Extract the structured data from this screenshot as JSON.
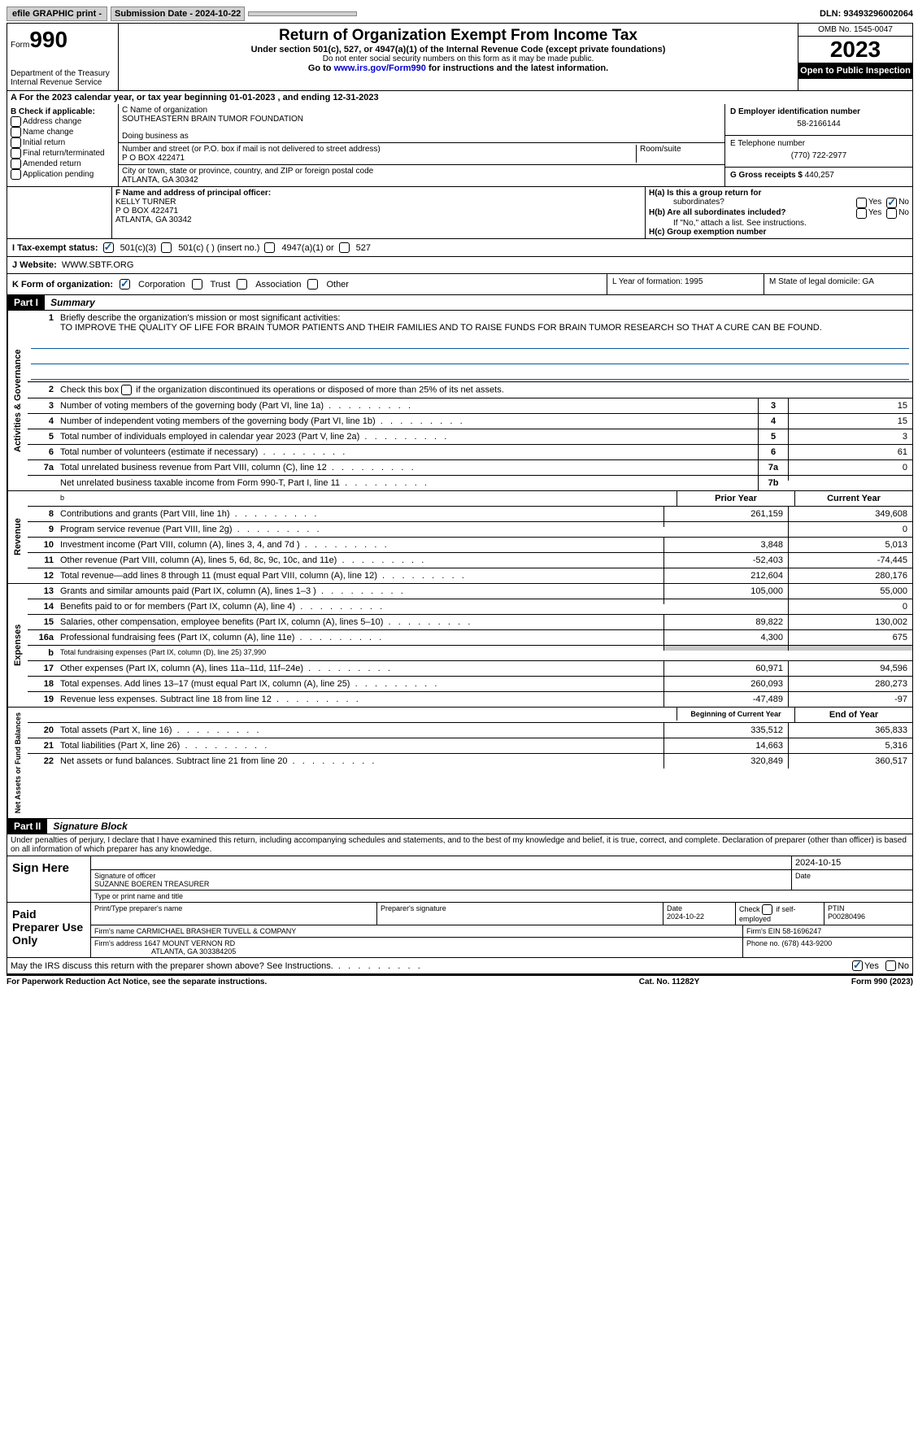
{
  "topbar": {
    "efile_label": "efile GRAPHIC print - ",
    "submission_label": "Submission Date - 2024-10-22",
    "dln_label": "DLN: 93493296002064"
  },
  "header": {
    "form_word": "Form",
    "form_num": "990",
    "dept": "Department of the Treasury",
    "irs": "Internal Revenue Service",
    "title": "Return of Organization Exempt From Income Tax",
    "subtitle": "Under section 501(c), 527, or 4947(a)(1) of the Internal Revenue Code (except private foundations)",
    "ssn_note": "Do not enter social security numbers on this form as it may be made public.",
    "goto_pre": "Go to ",
    "goto_link": "www.irs.gov/Form990",
    "goto_post": " for instructions and the latest information.",
    "omb": "OMB No. 1545-0047",
    "year": "2023",
    "inspect": "Open to Public Inspection"
  },
  "periodA": "A For the 2023 calendar year, or tax year beginning 01-01-2023    , and ending 12-31-2023",
  "boxB": {
    "label": "B Check if applicable:",
    "items": [
      "Address change",
      "Name change",
      "Initial return",
      "Final return/terminated",
      "Amended return",
      "Application pending"
    ]
  },
  "boxC": {
    "name_label": "C Name of organization",
    "name": "SOUTHEASTERN BRAIN TUMOR FOUNDATION",
    "dba_label": "Doing business as",
    "street_label": "Number and street (or P.O. box if mail is not delivered to street address)",
    "room_label": "Room/suite",
    "street": "P O BOX 422471",
    "city_label": "City or town, state or province, country, and ZIP or foreign postal code",
    "city": "ATLANTA, GA  30342"
  },
  "boxD": {
    "ein_label": "D Employer identification number",
    "ein": "58-2166144",
    "phone_label": "E Telephone number",
    "phone": "(770) 722-2977",
    "gross_label": "G Gross receipts $ ",
    "gross": "440,257"
  },
  "boxF": {
    "label": "F Name and address of principal officer:",
    "name": "KELLY TURNER",
    "addr1": "P O BOX 422471",
    "addr2": "ATLANTA, GA  30342"
  },
  "boxH": {
    "ha": "H(a)  Is this a group return for",
    "ha2": "subordinates?",
    "hb": "H(b)  Are all subordinates included?",
    "hb_note": "If \"No,\" attach a list. See instructions.",
    "hc": "H(c)  Group exemption number  ",
    "yes": "Yes",
    "no": "No"
  },
  "taxexempt": {
    "label": "I    Tax-exempt status:",
    "c3": "501(c)(3)",
    "c": "501(c) (  ) (insert no.)",
    "a1": "4947(a)(1) or",
    "s527": "527"
  },
  "website": {
    "label": "J   Website: ",
    "url": "WWW.SBTF.ORG"
  },
  "orgform": {
    "label": "K Form of organization:",
    "corp": "Corporation",
    "trust": "Trust",
    "assoc": "Association",
    "other": "Other"
  },
  "LM": {
    "L": "L Year of formation: 1995",
    "M": "M State of legal domicile: GA"
  },
  "part1": {
    "header": "Part I",
    "title": "Summary",
    "vert_a": "Activities & Governance",
    "vert_r": "Revenue",
    "vert_e": "Expenses",
    "vert_n": "Net Assets or Fund Balances",
    "line1_label": "Briefly describe the organization's mission or most significant activities:",
    "line1_txt": "TO IMPROVE THE QUALITY OF LIFE FOR BRAIN TUMOR PATIENTS AND THEIR FAMILIES AND TO RAISE FUNDS FOR BRAIN TUMOR RESEARCH SO THAT A CURE CAN BE FOUND.",
    "line2": "Check this box      if the organization discontinued its operations or disposed of more than 25% of its net assets.",
    "lines_A": [
      {
        "n": "3",
        "t": "Number of voting members of the governing body (Part VI, line 1a)",
        "v": "15"
      },
      {
        "n": "4",
        "t": "Number of independent voting members of the governing body (Part VI, line 1b)",
        "v": "15"
      },
      {
        "n": "5",
        "t": "Total number of individuals employed in calendar year 2023 (Part V, line 2a)",
        "v": "3"
      },
      {
        "n": "6",
        "t": "Total number of volunteers (estimate if necessary)",
        "v": "61"
      },
      {
        "n": "7a",
        "t": "Total unrelated business revenue from Part VIII, column (C), line 12",
        "v": "0"
      },
      {
        "n": "",
        "t": "Net unrelated business taxable income from Form 990-T, Part I, line 11",
        "bn": "7b",
        "v": ""
      }
    ],
    "col_py": "Prior Year",
    "col_cy": "Current Year",
    "lines_R": [
      {
        "n": "8",
        "t": "Contributions and grants (Part VIII, line 1h)",
        "py": "261,159",
        "cy": "349,608"
      },
      {
        "n": "9",
        "t": "Program service revenue (Part VIII, line 2g)",
        "py": "",
        "cy": "0"
      },
      {
        "n": "10",
        "t": "Investment income (Part VIII, column (A), lines 3, 4, and 7d )",
        "py": "3,848",
        "cy": "5,013"
      },
      {
        "n": "11",
        "t": "Other revenue (Part VIII, column (A), lines 5, 6d, 8c, 9c, 10c, and 11e)",
        "py": "-52,403",
        "cy": "-74,445"
      },
      {
        "n": "12",
        "t": "Total revenue—add lines 8 through 11 (must equal Part VIII, column (A), line 12)",
        "py": "212,604",
        "cy": "280,176"
      }
    ],
    "lines_E": [
      {
        "n": "13",
        "t": "Grants and similar amounts paid (Part IX, column (A), lines 1–3 )",
        "py": "105,000",
        "cy": "55,000"
      },
      {
        "n": "14",
        "t": "Benefits paid to or for members (Part IX, column (A), line 4)",
        "py": "",
        "cy": "0"
      },
      {
        "n": "15",
        "t": "Salaries, other compensation, employee benefits (Part IX, column (A), lines 5–10)",
        "py": "89,822",
        "cy": "130,002"
      },
      {
        "n": "16a",
        "t": "Professional fundraising fees (Part IX, column (A), line 11e)",
        "py": "4,300",
        "cy": "675"
      },
      {
        "n": "b",
        "t": "Total fundraising expenses (Part IX, column (D), line 25) 37,990",
        "py": "GREY",
        "cy": "GREY"
      },
      {
        "n": "17",
        "t": "Other expenses (Part IX, column (A), lines 11a–11d, 11f–24e)",
        "py": "60,971",
        "cy": "94,596"
      },
      {
        "n": "18",
        "t": "Total expenses. Add lines 13–17 (must equal Part IX, column (A), line 25)",
        "py": "260,093",
        "cy": "280,273"
      },
      {
        "n": "19",
        "t": "Revenue less expenses. Subtract line 18 from line 12",
        "py": "-47,489",
        "cy": "-97"
      }
    ],
    "col_by": "Beginning of Current Year",
    "col_ey": "End of Year",
    "lines_N": [
      {
        "n": "20",
        "t": "Total assets (Part X, line 16)",
        "py": "335,512",
        "cy": "365,833"
      },
      {
        "n": "21",
        "t": "Total liabilities (Part X, line 26)",
        "py": "14,663",
        "cy": "5,316"
      },
      {
        "n": "22",
        "t": "Net assets or fund balances. Subtract line 21 from line 20",
        "py": "320,849",
        "cy": "360,517"
      }
    ]
  },
  "part2": {
    "header": "Part II",
    "title": "Signature Block",
    "declaration": "Under penalties of perjury, I declare that I have examined this return, including accompanying schedules and statements, and to the best of my knowledge and belief, it is true, correct, and complete. Declaration of preparer (other than officer) is based on all information of which preparer has any knowledge.",
    "sign_here": "Sign Here",
    "sig_officer": "Signature of officer",
    "sig_name": "SUZANNE BOEREN TREASURER",
    "sig_type": "Type or print name and title",
    "sig_date_label": "Date",
    "sig_date": "2024-10-15",
    "paid": "Paid Preparer Use Only",
    "prep_name_label": "Print/Type preparer's name",
    "prep_sig_label": "Preparer's signature",
    "prep_date_label": "Date",
    "prep_date": "2024-10-22",
    "prep_check": "Check       if self-employed",
    "ptin_label": "PTIN",
    "ptin": "P00280496",
    "firm_name_label": "Firm's name   ",
    "firm_name": "CARMICHAEL BRASHER TUVELL & COMPANY",
    "firm_ein_label": "Firm's EIN  ",
    "firm_ein": "58-1696247",
    "firm_addr_label": "Firm's address ",
    "firm_addr1": "1647 MOUNT VERNON RD",
    "firm_addr2": "ATLANTA, GA  303384205",
    "firm_phone_label": "Phone no. ",
    "firm_phone": "(678) 443-9200",
    "discuss": "May the IRS discuss this return with the preparer shown above? See Instructions.",
    "yes": "Yes",
    "no": "No"
  },
  "footer": {
    "left": "For Paperwork Reduction Act Notice, see the separate instructions.",
    "center": "Cat. No. 11282Y",
    "right": "Form 990 (2023)"
  }
}
